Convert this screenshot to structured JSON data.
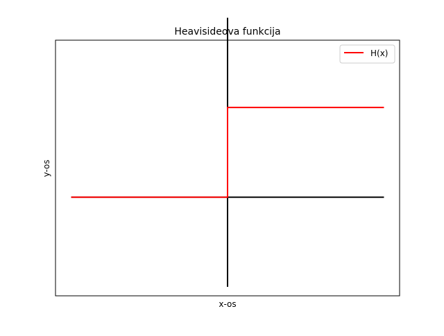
{
  "chart_data": {
    "type": "line",
    "title": "Heavisideova funkcija",
    "xlabel": "x-os",
    "ylabel": "y-os",
    "xlim": [
      -2.2,
      2.2
    ],
    "ylim": [
      -1.1,
      1.75
    ],
    "show_ticks": false,
    "grid": false,
    "legend": {
      "position": "top-right"
    },
    "series": [
      {
        "name": "H(x)",
        "color": "#ff0000",
        "x": [
          -2,
          0,
          0,
          2
        ],
        "y": [
          0,
          0,
          1,
          1
        ]
      }
    ],
    "axis_lines": {
      "color": "#000000",
      "horizontal": {
        "y": 0,
        "x_from": -2,
        "x_to": 2
      },
      "vertical": {
        "x": 0,
        "y_from": -1,
        "y_to": 2
      }
    }
  }
}
